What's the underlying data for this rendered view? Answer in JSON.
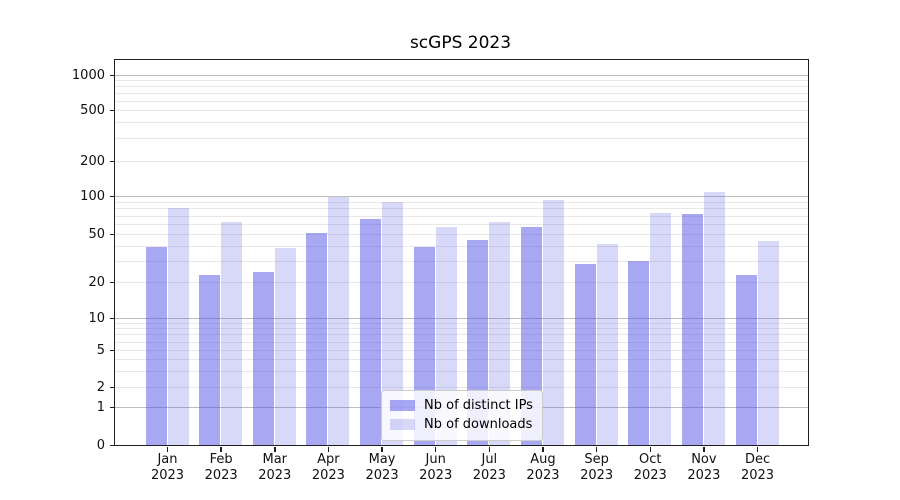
{
  "chart_data": {
    "type": "bar",
    "title": "scGPS 2023",
    "categories": [
      "Jan 2023",
      "Feb 2023",
      "Mar 2023",
      "Apr 2023",
      "May 2023",
      "Jun 2023",
      "Jul 2023",
      "Aug 2023",
      "Sep 2023",
      "Oct 2023",
      "Nov 2023",
      "Dec 2023"
    ],
    "series": [
      {
        "name": "Nb of distinct IPs",
        "color": "#5050e6",
        "alpha": 0.5,
        "values": [
          39,
          23,
          24,
          51,
          66,
          39,
          45,
          57,
          28,
          30,
          72,
          23
        ]
      },
      {
        "name": "Nb of downloads",
        "color": "#4646dc",
        "alpha": 0.21,
        "values": [
          81,
          62,
          38,
          98,
          89,
          57,
          62,
          93,
          41,
          74,
          108,
          44
        ]
      }
    ],
    "yscale": "symlog",
    "y_ticks": [
      0,
      1,
      2,
      5,
      10,
      20,
      50,
      100,
      200,
      500,
      1000
    ],
    "ylim": [
      0,
      1300
    ],
    "grid": true,
    "legend_position": "lower center"
  },
  "y_axis": {
    "tick_labels": [
      "1000",
      "500",
      "200",
      "100",
      "50",
      "20",
      "10",
      "5",
      "2",
      "1",
      "0"
    ]
  },
  "legend": {
    "items": [
      "Nb of distinct IPs",
      "Nb of downloads"
    ]
  },
  "colors": {
    "grid_major": "#bdbdbd",
    "grid_minor": "#e8e8e8",
    "spine": "#1f1f1f",
    "background": "#ffffff"
  }
}
